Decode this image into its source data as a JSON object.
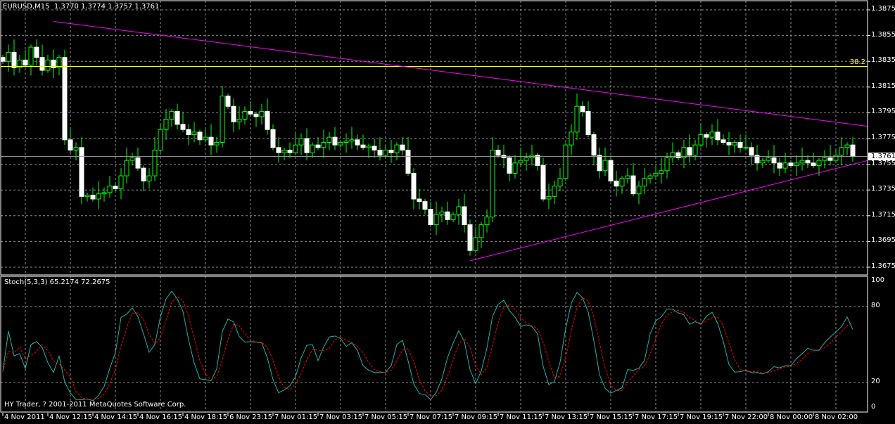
{
  "header": {
    "symbol": "EURUSD,M15",
    "ohlc": "1.3770 1.3774 1.3757 1.3761"
  },
  "indicator": {
    "label": "Stoch(5,3,3) 65.2174 72.2675",
    "levels": [
      80,
      20
    ],
    "k_color": "#20b2aa",
    "d_color": "#ff0000"
  },
  "footer": {
    "copyright": "HY Trader, ? 2001-2011 MetaQuotes Software Corp."
  },
  "colors": {
    "background": "#000000",
    "grid": "#8c8c8c",
    "bull_outline": "#00ff00",
    "bear_body": "#ffffff",
    "trendline": "#ff00ff",
    "fibo": "#ffff00",
    "price_line": "#a0a0a0"
  },
  "chart_data": {
    "type": "candlestick",
    "price_axis": {
      "min": 1.3665,
      "max": 1.3885,
      "ticks": [
        "1.3875",
        "1.3855",
        "1.3835",
        "1.3815",
        "1.3795",
        "1.3775",
        "1.3755",
        "1.3735",
        "1.3715",
        "1.3695",
        "1.3675"
      ]
    },
    "stoch_axis": {
      "ticks": [
        "100",
        "80",
        "20",
        "0"
      ]
    },
    "time_labels": [
      "4 Nov 2011",
      "4 Nov 12:15",
      "4 Nov 14:15",
      "4 Nov 16:15",
      "4 Nov 18:15",
      "6 Nov 23:15",
      "7 Nov 01:15",
      "7 Nov 03:15",
      "7 Nov 05:15",
      "7 Nov 07:15",
      "7 Nov 09:15",
      "7 Nov 11:15",
      "7 Nov 13:15",
      "7 Nov 15:15",
      "7 Nov 17:15",
      "7 Nov 19:15",
      "7 Nov 22:00",
      "8 Nov 00:00",
      "8 Nov 02:00"
    ],
    "current_price": "1.3761",
    "fibo": {
      "label": "38.2",
      "price": 1.3831
    },
    "trendlines": [
      {
        "from": {
          "bar": 9,
          "price": 1.3866
        },
        "to": {
          "bar": 151,
          "price": 1.3786
        }
      },
      {
        "from": {
          "bar": 83,
          "price": 1.368
        },
        "to": {
          "bar": 151,
          "price": 1.3755
        }
      }
    ],
    "closes": [
      1.3835,
      1.3842,
      1.383,
      1.3836,
      1.3832,
      1.3846,
      1.3838,
      1.3828,
      1.3836,
      1.383,
      1.3838,
      1.3774,
      1.3766,
      1.3768,
      1.373,
      1.3731,
      1.3728,
      1.3732,
      1.3733,
      1.3738,
      1.3736,
      1.3746,
      1.3758,
      1.376,
      1.3752,
      1.3742,
      1.3746,
      1.3766,
      1.3782,
      1.379,
      1.3796,
      1.3786,
      1.3782,
      1.3778,
      1.378,
      1.3774,
      1.3776,
      1.377,
      1.3772,
      1.3808,
      1.38,
      1.3788,
      1.379,
      1.3796,
      1.3794,
      1.3792,
      1.3796,
      1.3782,
      1.3768,
      1.3764,
      1.3766,
      1.3764,
      1.377,
      1.3775,
      1.3764,
      1.377,
      1.3768,
      1.3772,
      1.3776,
      1.377,
      1.3772,
      1.3773,
      1.3774,
      1.377,
      1.3768,
      1.3769,
      1.3766,
      1.3762,
      1.3766,
      1.3764,
      1.377,
      1.3766,
      1.3748,
      1.3728,
      1.3726,
      1.372,
      1.3708,
      1.3716,
      1.3718,
      1.3712,
      1.3716,
      1.3722,
      1.3708,
      1.3688,
      1.3698,
      1.3708,
      1.3714,
      1.3766,
      1.3762,
      1.376,
      1.3748,
      1.3756,
      1.3758,
      1.376,
      1.3762,
      1.3754,
      1.3728,
      1.373,
      1.3738,
      1.3744,
      1.377,
      1.378,
      1.38,
      1.3796,
      1.3778,
      1.3762,
      1.375,
      1.3758,
      1.3742,
      1.3738,
      1.3744,
      1.3746,
      1.3732,
      1.3738,
      1.3744,
      1.3746,
      1.3748,
      1.375,
      1.376,
      1.3764,
      1.376,
      1.3768,
      1.3762,
      1.377,
      1.3778,
      1.3776,
      1.378,
      1.3774,
      1.3772,
      1.377,
      1.3772,
      1.3768,
      1.3768,
      1.3762,
      1.3756,
      1.3758,
      1.376,
      1.3756,
      1.3752,
      1.3756,
      1.3754,
      1.3756,
      1.3758,
      1.3756,
      1.3754,
      1.3758,
      1.376,
      1.3758,
      1.3762,
      1.3768,
      1.377,
      1.3761
    ]
  }
}
